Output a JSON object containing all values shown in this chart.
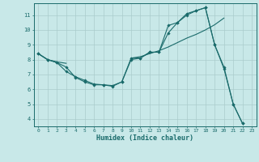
{
  "xlabel": "Humidex (Indice chaleur)",
  "xlim": [
    -0.5,
    23.5
  ],
  "ylim": [
    3.5,
    11.8
  ],
  "yticks": [
    4,
    5,
    6,
    7,
    8,
    9,
    10,
    11
  ],
  "xticks": [
    0,
    1,
    2,
    3,
    4,
    5,
    6,
    7,
    8,
    9,
    10,
    11,
    12,
    13,
    14,
    15,
    16,
    17,
    18,
    19,
    20,
    21,
    22,
    23
  ],
  "bg_color": "#c8e8e8",
  "line_color": "#1a6b6b",
  "grid_color": "#aacccc",
  "series1_x": [
    0,
    1,
    2,
    3,
    4,
    5,
    6,
    7,
    8,
    9,
    10,
    11,
    12,
    13,
    14,
    15,
    16,
    17,
    18,
    19,
    20,
    21,
    22
  ],
  "series1_y": [
    8.4,
    8.0,
    7.8,
    7.5,
    6.8,
    6.5,
    6.3,
    6.3,
    6.2,
    6.5,
    8.0,
    8.1,
    8.5,
    8.5,
    9.8,
    10.5,
    11.0,
    11.3,
    11.5,
    9.0,
    7.4,
    5.0,
    3.7
  ],
  "series2_x": [
    0,
    1,
    2,
    3,
    10,
    11,
    12,
    13,
    14,
    15,
    16,
    17,
    18,
    19,
    20
  ],
  "series2_y": [
    8.4,
    8.0,
    7.85,
    7.75,
    8.1,
    8.2,
    8.4,
    8.6,
    8.85,
    9.15,
    9.45,
    9.7,
    10.0,
    10.35,
    10.8
  ],
  "series3_x": [
    0,
    1,
    2,
    3,
    4,
    5,
    6,
    7,
    8,
    9,
    10,
    11,
    12,
    13,
    14,
    15,
    16,
    17,
    18,
    19,
    20,
    21,
    22
  ],
  "series3_y": [
    8.4,
    8.0,
    7.8,
    7.2,
    6.85,
    6.6,
    6.35,
    6.3,
    6.25,
    6.5,
    8.1,
    8.1,
    8.5,
    8.5,
    10.3,
    10.5,
    11.1,
    11.3,
    11.5,
    9.0,
    7.5,
    5.0,
    3.7
  ]
}
